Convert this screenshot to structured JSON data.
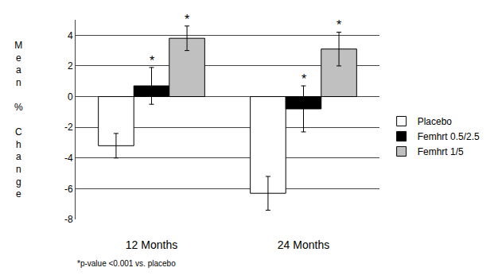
{
  "chart_data": {
    "type": "bar",
    "categories": [
      "12 Months",
      "24 Months"
    ],
    "series": [
      {
        "name": "Placebo",
        "color": "#ffffff",
        "values": [
          -3.2,
          -6.3
        ],
        "errors": [
          0.8,
          1.1
        ]
      },
      {
        "name": "Femhrt 0.5/2.5",
        "color": "#000000",
        "values": [
          0.7,
          -0.8
        ],
        "errors": [
          1.2,
          1.5
        ]
      },
      {
        "name": "Femhrt 1/5",
        "color": "#c0c0c0",
        "values": [
          3.8,
          3.1
        ],
        "errors": [
          0.8,
          1.1
        ]
      }
    ],
    "y_label": "Mean % Change",
    "ylim": [
      -8,
      5
    ],
    "yticks": [
      -8,
      -6,
      -4,
      -2,
      0,
      2,
      4
    ],
    "grid": true,
    "legend": "right",
    "annotations": [
      {
        "text": "*",
        "category": "12 Months",
        "series": "Femhrt 0.5/2.5"
      },
      {
        "text": "*",
        "category": "12 Months",
        "series": "Femhrt 1/5"
      },
      {
        "text": "*",
        "category": "24 Months",
        "series": "Femhrt 0.5/2.5"
      },
      {
        "text": "*",
        "category": "24 Months",
        "series": "Femhrt 1/5"
      }
    ],
    "footnote": "*p-value <0.001 vs. placebo"
  }
}
